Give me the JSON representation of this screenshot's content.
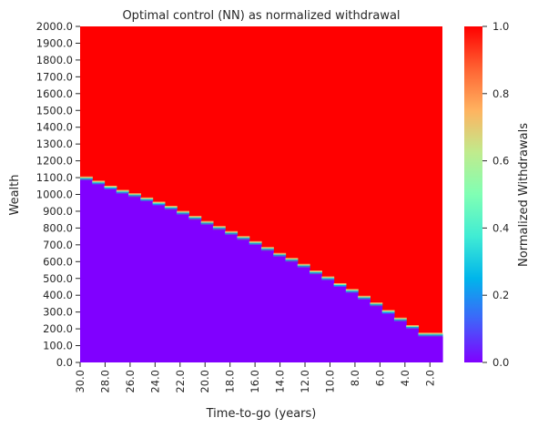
{
  "chart_data": {
    "type": "heatmap",
    "title": "Optimal control (NN) as normalized withdrawal",
    "xlabel": "Time-to-go (years)",
    "ylabel": "Wealth",
    "colorbar_label": "Normalized Withdrawals",
    "colormap": "rainbow",
    "low_color": "#8000ff",
    "high_color": "#ff0000",
    "x_range": [
      30.0,
      1.0
    ],
    "x_ticks": [
      "30.0",
      "28.0",
      "26.0",
      "24.0",
      "22.0",
      "20.0",
      "18.0",
      "16.0",
      "14.0",
      "12.0",
      "10.0",
      "8.0",
      "6.0",
      "4.0",
      "2.0"
    ],
    "x_tick_values": [
      30,
      28,
      26,
      24,
      22,
      20,
      18,
      16,
      14,
      12,
      10,
      8,
      6,
      4,
      2
    ],
    "y_range": [
      0,
      2000
    ],
    "y_ticks": [
      "0.0",
      "100.0",
      "200.0",
      "300.0",
      "400.0",
      "500.0",
      "600.0",
      "700.0",
      "800.0",
      "900.0",
      "1000.0",
      "1100.0",
      "1200.0",
      "1300.0",
      "1400.0",
      "1500.0",
      "1600.0",
      "1700.0",
      "1800.0",
      "1900.0",
      "2000.0"
    ],
    "y_tick_values": [
      0,
      100,
      200,
      300,
      400,
      500,
      600,
      700,
      800,
      900,
      1000,
      1100,
      1200,
      1300,
      1400,
      1500,
      1600,
      1700,
      1800,
      1900,
      2000
    ],
    "colorbar_range": [
      0.0,
      1.0
    ],
    "colorbar_ticks": [
      "0.0",
      "0.2",
      "0.4",
      "0.6",
      "0.8",
      "1.0"
    ],
    "colorbar_tick_values": [
      0.0,
      0.2,
      0.4,
      0.6,
      0.8,
      1.0
    ],
    "boundary": {
      "time_to_go": [
        30,
        29,
        28,
        27,
        26,
        25,
        24,
        23,
        22,
        21,
        20,
        19,
        18,
        17,
        16,
        15,
        14,
        13,
        12,
        11,
        10,
        9,
        8,
        7,
        6,
        5,
        4,
        3,
        2,
        1
      ],
      "wealth": [
        1085,
        1060,
        1030,
        1005,
        985,
        960,
        935,
        910,
        880,
        850,
        820,
        790,
        760,
        730,
        700,
        665,
        630,
        600,
        565,
        525,
        490,
        450,
        415,
        375,
        335,
        290,
        245,
        200,
        155,
        155
      ]
    }
  }
}
